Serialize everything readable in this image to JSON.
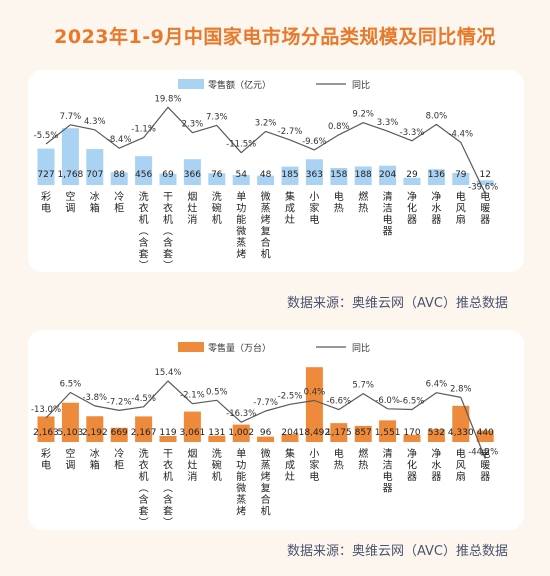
{
  "title": "2023年1-9月中国家电市场分品类规模及同比情况",
  "chart_data": [
    {
      "type": "bar",
      "categories": [
        "彩电",
        "空调",
        "冰箱",
        "冷柜",
        "洗衣机（含套）",
        "干衣机（含套）",
        "烟灶消",
        "洗碗机",
        "单功能微蒸烤",
        "微蒸烤复合机",
        "集成灶",
        "小家电",
        "电热",
        "燃热",
        "清洁电器",
        "净化器",
        "净水器",
        "电风扇",
        "电暖器"
      ],
      "series": [
        {
          "name": "零售额（亿元）",
          "type": "bar",
          "values": [
            "727",
            "1,768",
            "707",
            "88",
            "456",
            "69",
            "366",
            "76",
            "54",
            "48",
            "185",
            "363",
            "158",
            "188",
            "204",
            "29",
            "136",
            "79",
            "12"
          ]
        },
        {
          "name": "同比",
          "type": "line",
          "values": [
            "-5.5%",
            "7.7%",
            "4.3%",
            "-8.4%",
            "-1.1%",
            "19.8%",
            "2.3%",
            "7.3%",
            "-11.5%",
            "3.2%",
            "-2.7%",
            "-9.6%",
            "0.8%",
            "9.2%",
            "3.3%",
            "-3.3%",
            "8.0%",
            "-4.4%",
            "-39.6%"
          ]
        }
      ],
      "bar_color": "#a9d2f3",
      "line_color": "#5a5a5a",
      "legend_position": "top",
      "source": "数据来源：奥维云网（AVC）推总数据"
    },
    {
      "type": "bar",
      "categories": [
        "彩电",
        "空调",
        "冰箱",
        "冷柜",
        "洗衣机（含套）",
        "干衣机（含套）",
        "烟灶消",
        "洗碗机",
        "单功能微蒸烤",
        "微蒸烤复合机",
        "集成灶",
        "小家电",
        "电热",
        "燃热",
        "清洁电器",
        "净化器",
        "净水器",
        "电风扇",
        "电暖器"
      ],
      "series": [
        {
          "name": "零售量（万台）",
          "type": "bar",
          "values": [
            "2,163",
            "5,103",
            "2,192",
            "669",
            "2,167",
            "119",
            "3,061",
            "131",
            "1,002",
            "96",
            "204",
            "18,492",
            "1,175",
            "857",
            "1,551",
            "170",
            "532",
            "4,330",
            "440"
          ]
        },
        {
          "name": "同比",
          "type": "line",
          "values": [
            "-13.0%",
            "6.5%",
            "-3.8%",
            "-7.2%",
            "-4.5%",
            "15.4%",
            "-2.1%",
            "0.5%",
            "-16.3%",
            "-7.7%",
            "-2.5%",
            "0.4%",
            "-6.6%",
            "5.7%",
            "-6.0%",
            "-6.5%",
            "6.4%",
            "2.8%",
            "-44.2%"
          ]
        }
      ],
      "bar_color": "#ee8a3c",
      "line_color": "#5a5a5a",
      "legend_position": "top",
      "source": "数据来源：奥维云网（AVC）推总数据"
    }
  ]
}
